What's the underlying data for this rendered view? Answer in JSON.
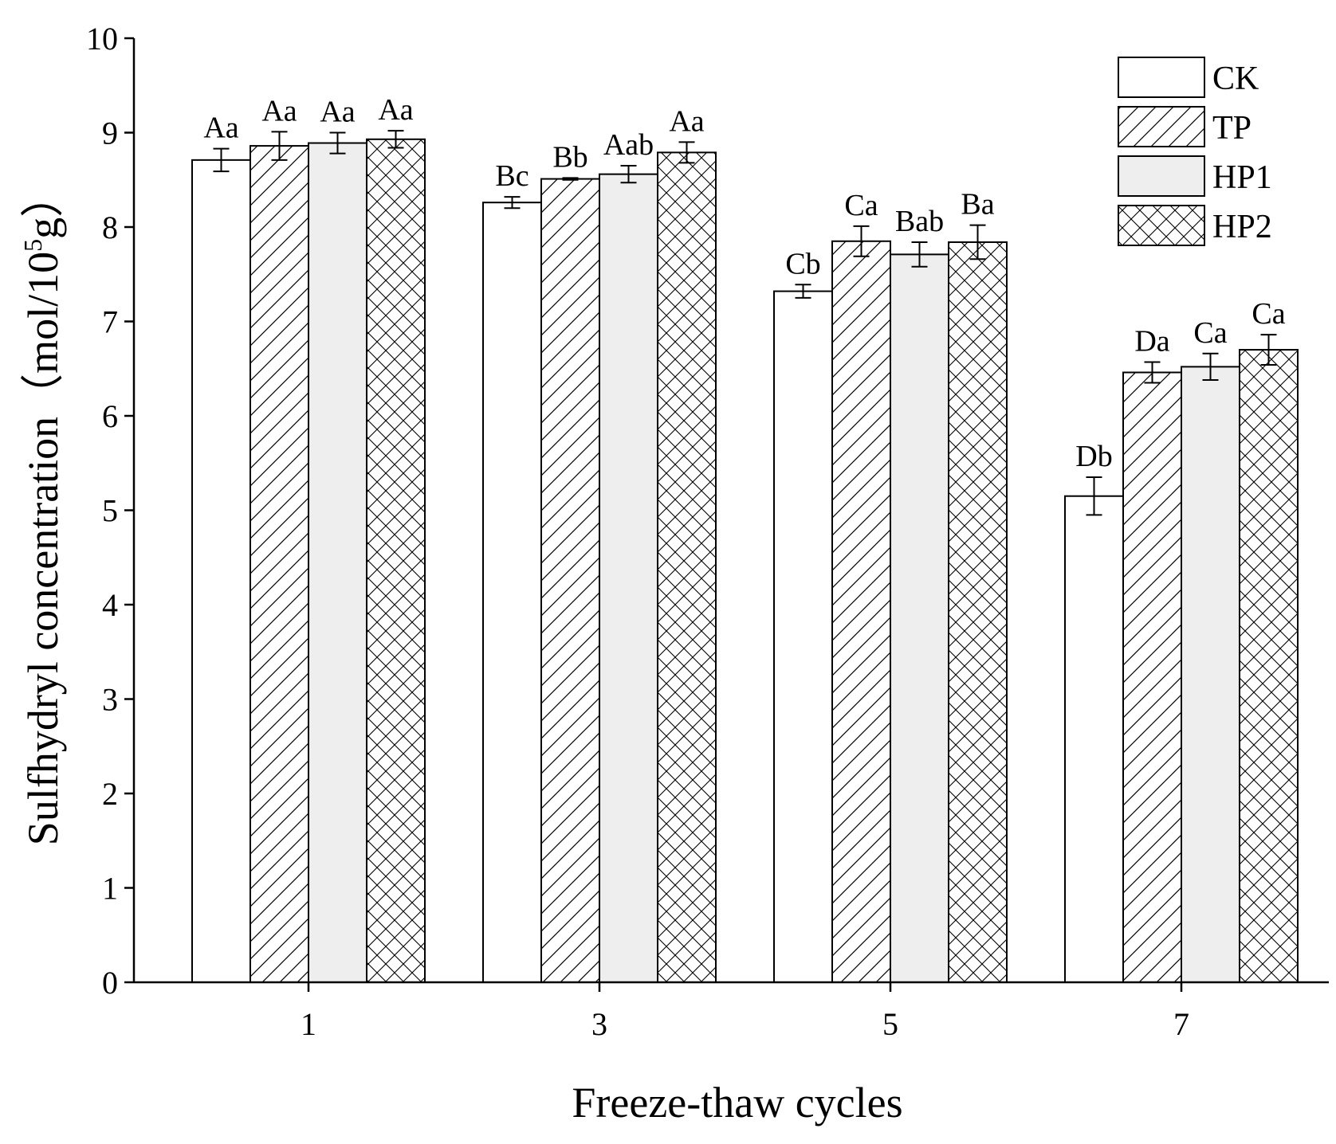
{
  "chart_data": {
    "type": "bar",
    "title": "",
    "xlabel": "Freeze-thaw cycles",
    "ylabel": {
      "main": "Sulfhydryl concentration",
      "open": "（",
      "unit_prefix": "mol/10",
      "unit_sup": "5",
      "unit_suffix": "g",
      "close": "）"
    },
    "ylim": [
      0,
      10
    ],
    "yticks": [
      "0",
      "1",
      "2",
      "3",
      "4",
      "5",
      "6",
      "7",
      "8",
      "9",
      "10"
    ],
    "categories": [
      "1",
      "3",
      "5",
      "7"
    ],
    "series": [
      {
        "name": "CK",
        "pattern": "none",
        "values": [
          8.71,
          8.26,
          7.32,
          5.15
        ],
        "errors": [
          0.12,
          0.06,
          0.07,
          0.2
        ],
        "labels": [
          "Aa",
          "Bc",
          "Cb",
          "Db"
        ]
      },
      {
        "name": "TP",
        "pattern": "hatch",
        "values": [
          8.86,
          8.51,
          7.85,
          6.46
        ],
        "errors": [
          0.15,
          0.01,
          0.16,
          0.11
        ],
        "labels": [
          "Aa",
          "Bb",
          "Ca",
          "Da"
        ]
      },
      {
        "name": "HP1",
        "pattern": "gray",
        "values": [
          8.89,
          8.56,
          7.71,
          6.52
        ],
        "errors": [
          0.11,
          0.09,
          0.13,
          0.14
        ],
        "labels": [
          "Aa",
          "Aab",
          "Bab",
          "Ca"
        ]
      },
      {
        "name": "HP2",
        "pattern": "cross",
        "values": [
          8.93,
          8.79,
          7.84,
          6.7
        ],
        "errors": [
          0.09,
          0.11,
          0.18,
          0.16
        ],
        "labels": [
          "Aa",
          "Aa",
          "Ba",
          "Ca"
        ]
      }
    ],
    "legend_position": "top-right",
    "grid": false,
    "colors": {
      "axis": "#000000",
      "bar_stroke": "#000000",
      "gray_fill": "#eeeeee",
      "white_fill": "#ffffff"
    }
  }
}
